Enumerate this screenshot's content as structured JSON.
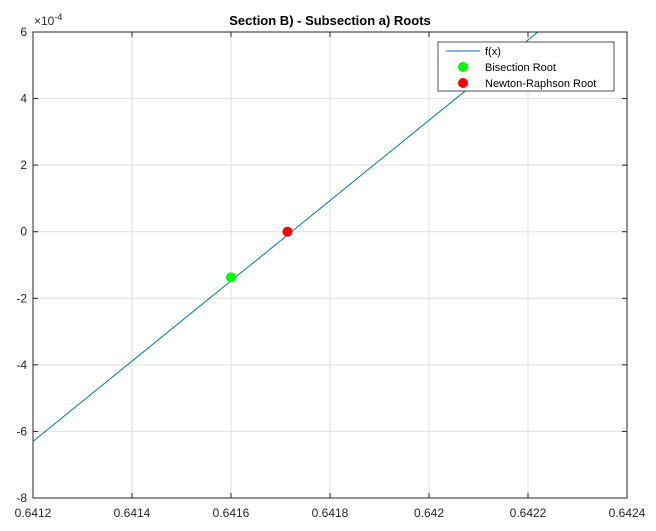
{
  "chart_data": {
    "type": "line",
    "title": "Section B) - Subsection a) Roots",
    "xlabel": "",
    "ylabel": "",
    "xlim": [
      0.6412,
      0.6424
    ],
    "ylim": [
      -8,
      6
    ],
    "y_exponent_label": "×10",
    "y_exponent_power": "-4",
    "x_ticks": [
      0.6412,
      0.6414,
      0.6416,
      0.6418,
      0.642,
      0.6422,
      0.6424
    ],
    "x_tick_labels": [
      "0.6412",
      "0.6414",
      "0.6416",
      "0.6418",
      "0.642",
      "0.6422",
      "0.6424"
    ],
    "y_ticks": [
      -8,
      -6,
      -4,
      -2,
      0,
      2,
      4,
      6
    ],
    "y_tick_labels": [
      "-8",
      "-6",
      "-4",
      "-2",
      "0",
      "2",
      "4",
      "6"
    ],
    "grid": true,
    "legend_position": "top-right",
    "series": [
      {
        "name": "f(x)",
        "kind": "line",
        "color": "#0072BD",
        "x": [
          0.6412,
          0.64222
        ],
        "y": [
          -6.3,
          6.0
        ]
      },
      {
        "name": "Bisection Root",
        "kind": "marker",
        "color": "#00FF00",
        "x": [
          0.6416
        ],
        "y": [
          -1.37
        ]
      },
      {
        "name": "Newton-Raphson Root",
        "kind": "marker",
        "color": "#FF0000",
        "x": [
          0.641714
        ],
        "y": [
          0.0
        ]
      }
    ]
  }
}
